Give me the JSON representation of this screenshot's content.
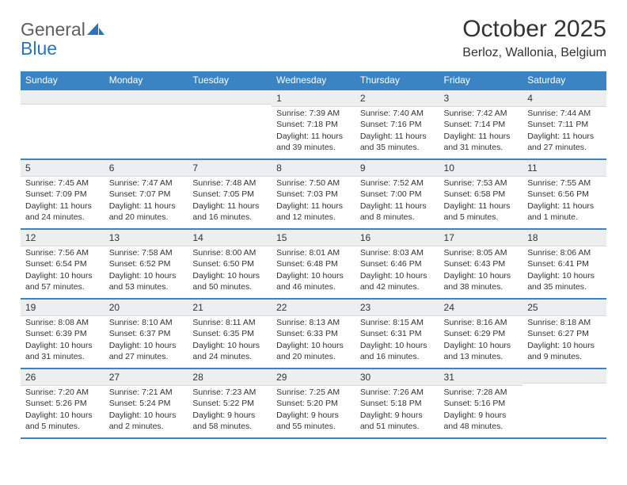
{
  "logo": {
    "text1": "General",
    "text2": "Blue"
  },
  "title": "October 2025",
  "location": "Berloz, Wallonia, Belgium",
  "colors": {
    "header_bg": "#3b84c4",
    "header_text": "#ffffff",
    "daynum_bg": "#eceeef",
    "border": "#3b84c4",
    "text": "#333333",
    "logo_gray": "#5e5e5e",
    "logo_blue": "#2a74bb"
  },
  "day_headers": [
    "Sunday",
    "Monday",
    "Tuesday",
    "Wednesday",
    "Thursday",
    "Friday",
    "Saturday"
  ],
  "weeks": [
    [
      {
        "n": "",
        "sr": "",
        "ss": "",
        "dl": ""
      },
      {
        "n": "",
        "sr": "",
        "ss": "",
        "dl": ""
      },
      {
        "n": "",
        "sr": "",
        "ss": "",
        "dl": ""
      },
      {
        "n": "1",
        "sr": "Sunrise: 7:39 AM",
        "ss": "Sunset: 7:18 PM",
        "dl": "Daylight: 11 hours and 39 minutes."
      },
      {
        "n": "2",
        "sr": "Sunrise: 7:40 AM",
        "ss": "Sunset: 7:16 PM",
        "dl": "Daylight: 11 hours and 35 minutes."
      },
      {
        "n": "3",
        "sr": "Sunrise: 7:42 AM",
        "ss": "Sunset: 7:14 PM",
        "dl": "Daylight: 11 hours and 31 minutes."
      },
      {
        "n": "4",
        "sr": "Sunrise: 7:44 AM",
        "ss": "Sunset: 7:11 PM",
        "dl": "Daylight: 11 hours and 27 minutes."
      }
    ],
    [
      {
        "n": "5",
        "sr": "Sunrise: 7:45 AM",
        "ss": "Sunset: 7:09 PM",
        "dl": "Daylight: 11 hours and 24 minutes."
      },
      {
        "n": "6",
        "sr": "Sunrise: 7:47 AM",
        "ss": "Sunset: 7:07 PM",
        "dl": "Daylight: 11 hours and 20 minutes."
      },
      {
        "n": "7",
        "sr": "Sunrise: 7:48 AM",
        "ss": "Sunset: 7:05 PM",
        "dl": "Daylight: 11 hours and 16 minutes."
      },
      {
        "n": "8",
        "sr": "Sunrise: 7:50 AM",
        "ss": "Sunset: 7:03 PM",
        "dl": "Daylight: 11 hours and 12 minutes."
      },
      {
        "n": "9",
        "sr": "Sunrise: 7:52 AM",
        "ss": "Sunset: 7:00 PM",
        "dl": "Daylight: 11 hours and 8 minutes."
      },
      {
        "n": "10",
        "sr": "Sunrise: 7:53 AM",
        "ss": "Sunset: 6:58 PM",
        "dl": "Daylight: 11 hours and 5 minutes."
      },
      {
        "n": "11",
        "sr": "Sunrise: 7:55 AM",
        "ss": "Sunset: 6:56 PM",
        "dl": "Daylight: 11 hours and 1 minute."
      }
    ],
    [
      {
        "n": "12",
        "sr": "Sunrise: 7:56 AM",
        "ss": "Sunset: 6:54 PM",
        "dl": "Daylight: 10 hours and 57 minutes."
      },
      {
        "n": "13",
        "sr": "Sunrise: 7:58 AM",
        "ss": "Sunset: 6:52 PM",
        "dl": "Daylight: 10 hours and 53 minutes."
      },
      {
        "n": "14",
        "sr": "Sunrise: 8:00 AM",
        "ss": "Sunset: 6:50 PM",
        "dl": "Daylight: 10 hours and 50 minutes."
      },
      {
        "n": "15",
        "sr": "Sunrise: 8:01 AM",
        "ss": "Sunset: 6:48 PM",
        "dl": "Daylight: 10 hours and 46 minutes."
      },
      {
        "n": "16",
        "sr": "Sunrise: 8:03 AM",
        "ss": "Sunset: 6:46 PM",
        "dl": "Daylight: 10 hours and 42 minutes."
      },
      {
        "n": "17",
        "sr": "Sunrise: 8:05 AM",
        "ss": "Sunset: 6:43 PM",
        "dl": "Daylight: 10 hours and 38 minutes."
      },
      {
        "n": "18",
        "sr": "Sunrise: 8:06 AM",
        "ss": "Sunset: 6:41 PM",
        "dl": "Daylight: 10 hours and 35 minutes."
      }
    ],
    [
      {
        "n": "19",
        "sr": "Sunrise: 8:08 AM",
        "ss": "Sunset: 6:39 PM",
        "dl": "Daylight: 10 hours and 31 minutes."
      },
      {
        "n": "20",
        "sr": "Sunrise: 8:10 AM",
        "ss": "Sunset: 6:37 PM",
        "dl": "Daylight: 10 hours and 27 minutes."
      },
      {
        "n": "21",
        "sr": "Sunrise: 8:11 AM",
        "ss": "Sunset: 6:35 PM",
        "dl": "Daylight: 10 hours and 24 minutes."
      },
      {
        "n": "22",
        "sr": "Sunrise: 8:13 AM",
        "ss": "Sunset: 6:33 PM",
        "dl": "Daylight: 10 hours and 20 minutes."
      },
      {
        "n": "23",
        "sr": "Sunrise: 8:15 AM",
        "ss": "Sunset: 6:31 PM",
        "dl": "Daylight: 10 hours and 16 minutes."
      },
      {
        "n": "24",
        "sr": "Sunrise: 8:16 AM",
        "ss": "Sunset: 6:29 PM",
        "dl": "Daylight: 10 hours and 13 minutes."
      },
      {
        "n": "25",
        "sr": "Sunrise: 8:18 AM",
        "ss": "Sunset: 6:27 PM",
        "dl": "Daylight: 10 hours and 9 minutes."
      }
    ],
    [
      {
        "n": "26",
        "sr": "Sunrise: 7:20 AM",
        "ss": "Sunset: 5:26 PM",
        "dl": "Daylight: 10 hours and 5 minutes."
      },
      {
        "n": "27",
        "sr": "Sunrise: 7:21 AM",
        "ss": "Sunset: 5:24 PM",
        "dl": "Daylight: 10 hours and 2 minutes."
      },
      {
        "n": "28",
        "sr": "Sunrise: 7:23 AM",
        "ss": "Sunset: 5:22 PM",
        "dl": "Daylight: 9 hours and 58 minutes."
      },
      {
        "n": "29",
        "sr": "Sunrise: 7:25 AM",
        "ss": "Sunset: 5:20 PM",
        "dl": "Daylight: 9 hours and 55 minutes."
      },
      {
        "n": "30",
        "sr": "Sunrise: 7:26 AM",
        "ss": "Sunset: 5:18 PM",
        "dl": "Daylight: 9 hours and 51 minutes."
      },
      {
        "n": "31",
        "sr": "Sunrise: 7:28 AM",
        "ss": "Sunset: 5:16 PM",
        "dl": "Daylight: 9 hours and 48 minutes."
      },
      {
        "n": "",
        "sr": "",
        "ss": "",
        "dl": ""
      }
    ]
  ]
}
